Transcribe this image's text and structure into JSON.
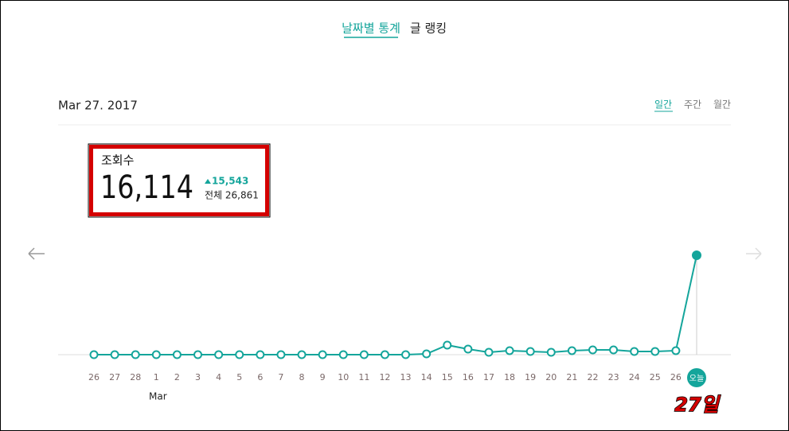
{
  "tabs": [
    "날짜별 통계",
    "글 랭킹"
  ],
  "date": "Mar 27. 2017",
  "period_tabs": [
    "일간",
    "주간",
    "월간"
  ],
  "stat": {
    "label": "조회수",
    "value": "16,114",
    "change": "15,543",
    "total": "전체 26,861"
  },
  "chart_data": {
    "type": "line",
    "categories": [
      "26",
      "27",
      "28",
      "1",
      "2",
      "3",
      "4",
      "5",
      "6",
      "7",
      "8",
      "9",
      "10",
      "11",
      "12",
      "13",
      "14",
      "15",
      "16",
      "17",
      "18",
      "19",
      "20",
      "21",
      "22",
      "23",
      "24",
      "25",
      "26",
      "오늘"
    ],
    "values": [
      0,
      0,
      0,
      0,
      0,
      0,
      0,
      0,
      0,
      0,
      0,
      0,
      0,
      0,
      0,
      0,
      130,
      1550,
      900,
      390,
      650,
      520,
      390,
      650,
      770,
      770,
      520,
      520,
      650,
      16114
    ],
    "color": "#14a59b",
    "month_label": "Mar",
    "annotation": "27일"
  }
}
